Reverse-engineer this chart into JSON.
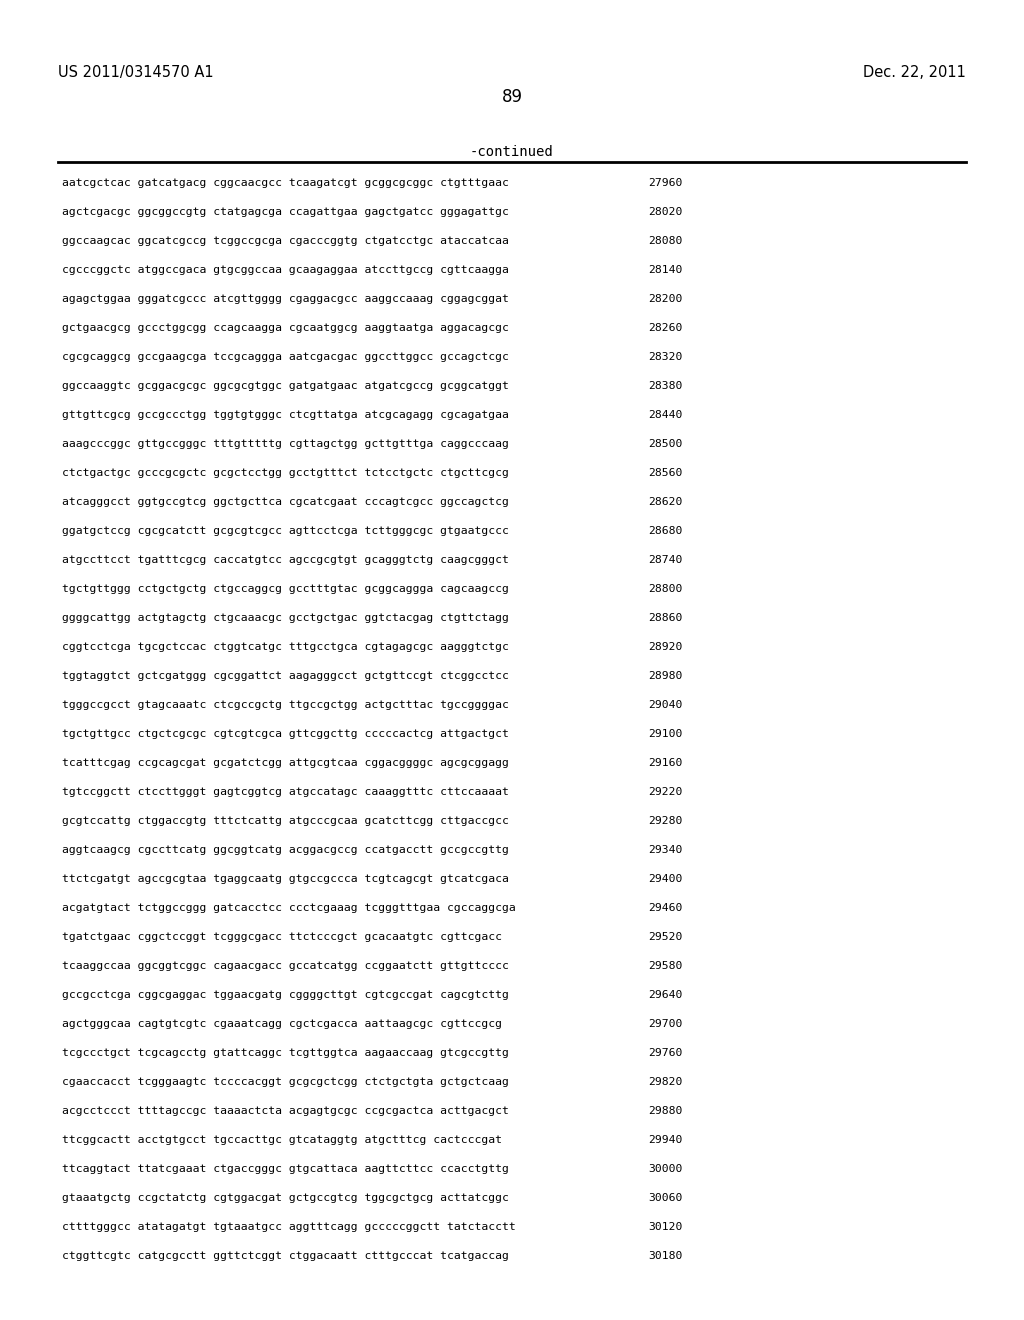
{
  "header_left": "US 2011/0314570 A1",
  "header_right": "Dec. 22, 2011",
  "page_number": "89",
  "continued_label": "-continued",
  "background_color": "#ffffff",
  "text_color": "#000000",
  "sequences": [
    {
      "seq": "aatcgctcac gatcatgacg cggcaacgcc tcaagatcgt gcggcgcggc ctgtttgaac",
      "num": "27960"
    },
    {
      "seq": "agctcgacgc ggcggccgtg ctatgagcga ccagattgaa gagctgatcc gggagattgc",
      "num": "28020"
    },
    {
      "seq": "ggccaagcac ggcatcgccg tcggccgcga cgacccggtg ctgatcctgc ataccatcaa",
      "num": "28080"
    },
    {
      "seq": "cgcccggctc atggccgaca gtgcggccaa gcaagaggaa atccttgccg cgttcaagga",
      "num": "28140"
    },
    {
      "seq": "agagctggaa gggatcgccc atcgttgggg cgaggacgcc aaggccaaag cggagcggat",
      "num": "28200"
    },
    {
      "seq": "gctgaacgcg gccctggcgg ccagcaagga cgcaatggcg aaggtaatga aggacagcgc",
      "num": "28260"
    },
    {
      "seq": "cgcgcaggcg gccgaagcga tccgcaggga aatcgacgac ggccttggcc gccagctcgc",
      "num": "28320"
    },
    {
      "seq": "ggccaaggtc gcggacgcgc ggcgcgtggc gatgatgaac atgatcgccg gcggcatggt",
      "num": "28380"
    },
    {
      "seq": "gttgttcgcg gccgccctgg tggtgtgggc ctcgttatga atcgcagagg cgcagatgaa",
      "num": "28440"
    },
    {
      "seq": "aaagcccggc gttgccgggc tttgtttttg cgttagctgg gcttgtttga caggcccaag",
      "num": "28500"
    },
    {
      "seq": "ctctgactgc gcccgcgctc gcgctcctgg gcctgtttct tctcctgctc ctgcttcgcg",
      "num": "28560"
    },
    {
      "seq": "atcagggcct ggtgccgtcg ggctgcttca cgcatcgaat cccagtcgcc ggccagctcg",
      "num": "28620"
    },
    {
      "seq": "ggatgctccg cgcgcatctt gcgcgtcgcc agttcctcga tcttgggcgc gtgaatgccc",
      "num": "28680"
    },
    {
      "seq": "atgccttcct tgatttcgcg caccatgtcc agccgcgtgt gcagggtctg caagcgggct",
      "num": "28740"
    },
    {
      "seq": "tgctgttggg cctgctgctg ctgccaggcg gcctttgtac gcggcaggga cagcaagccg",
      "num": "28800"
    },
    {
      "seq": "ggggcattgg actgtagctg ctgcaaacgc gcctgctgac ggtctacgag ctgttctagg",
      "num": "28860"
    },
    {
      "seq": "cggtcctcga tgcgctccac ctggtcatgc tttgcctgca cgtagagcgc aagggtctgc",
      "num": "28920"
    },
    {
      "seq": "tggtaggtct gctcgatggg cgcggattct aagagggcct gctgttccgt ctcggcctcc",
      "num": "28980"
    },
    {
      "seq": "tgggccgcct gtagcaaatc ctcgccgctg ttgccgctgg actgctttac tgccggggac",
      "num": "29040"
    },
    {
      "seq": "tgctgttgcc ctgctcgcgc cgtcgtcgca gttcggcttg cccccactcg attgactgct",
      "num": "29100"
    },
    {
      "seq": "tcatttcgag ccgcagcgat gcgatctcgg attgcgtcaa cggacggggc agcgcggagg",
      "num": "29160"
    },
    {
      "seq": "tgtccggctt ctccttgggt gagtcggtcg atgccatagc caaaggtttc cttccaaaat",
      "num": "29220"
    },
    {
      "seq": "gcgtccattg ctggaccgtg tttctcattg atgcccgcaa gcatcttcgg cttgaccgcc",
      "num": "29280"
    },
    {
      "seq": "aggtcaagcg cgccttcatg ggcggtcatg acggacgccg ccatgacctt gccgccgttg",
      "num": "29340"
    },
    {
      "seq": "ttctcgatgt agccgcgtaa tgaggcaatg gtgccgccca tcgtcagcgt gtcatcgaca",
      "num": "29400"
    },
    {
      "seq": "acgatgtact tctggccggg gatcacctcc ccctcgaaag tcgggtttgaa cgccaggcga",
      "num": "29460"
    },
    {
      "seq": "tgatctgaac cggctccggt tcgggcgacc ttctcccgct gcacaatgtc cgttcgacc",
      "num": "29520"
    },
    {
      "seq": "tcaaggccaa ggcggtcggc cagaacgacc gccatcatgg ccggaatctt gttgttcccc",
      "num": "29580"
    },
    {
      "seq": "gccgcctcga cggcgaggac tggaacgatg cggggcttgt cgtcgccgat cagcgtcttg",
      "num": "29640"
    },
    {
      "seq": "agctgggcaa cagtgtcgtc cgaaatcagg cgctcgacca aattaagcgc cgttccgcg",
      "num": "29700"
    },
    {
      "seq": "tcgccctgct tcgcagcctg gtattcaggc tcgttggtca aagaaccaag gtcgccgttg",
      "num": "29760"
    },
    {
      "seq": "cgaaccacct tcgggaagtc tccccacggt gcgcgctcgg ctctgctgta gctgctcaag",
      "num": "29820"
    },
    {
      "seq": "acgcctccct ttttagccgc taaaactcta acgagtgcgc ccgcgactca acttgacgct",
      "num": "29880"
    },
    {
      "seq": "ttcggcactt acctgtgcct tgccacttgc gtcataggtg atgctttcg cactcccgat",
      "num": "29940"
    },
    {
      "seq": "ttcaggtact ttatcgaaat ctgaccgggc gtgcattaca aagttcttcc ccacctgttg",
      "num": "30000"
    },
    {
      "seq": "gtaaatgctg ccgctatctg cgtggacgat gctgccgtcg tggcgctgcg acttatcggc",
      "num": "30060"
    },
    {
      "seq": "cttttgggcc atatagatgt tgtaaatgcc aggtttcagg gcccccggctt tatctacctt",
      "num": "30120"
    },
    {
      "seq": "ctggttcgtc catgcgcctt ggttctcggt ctggacaatt ctttgcccat tcatgaccag",
      "num": "30180"
    }
  ]
}
